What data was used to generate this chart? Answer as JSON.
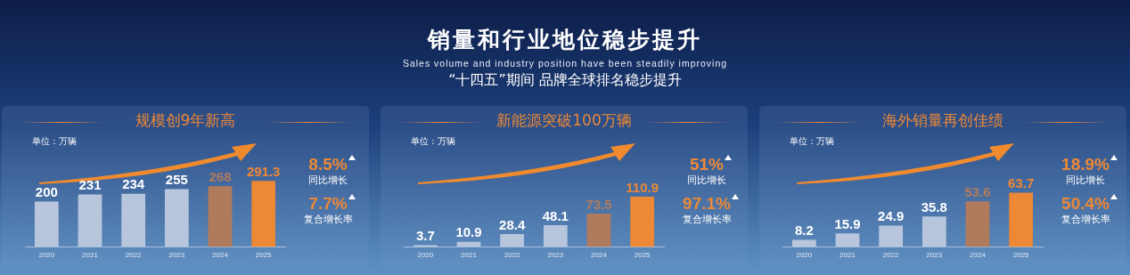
{
  "chart_data": [
    {
      "type": "other",
      "title": "销量和行业地位稳步提升",
      "subtitle": "Sales volume and industry position have been steadily improving",
      "annotations": [
        "“十四五”期间 品牌全球排名稳步提升"
      ]
    },
    {
      "type": "bar",
      "title": "规模创9年新高",
      "categories": [
        "2020",
        "2021",
        "2022",
        "2023",
        "2024",
        "2025"
      ],
      "values": [
        200,
        231,
        234,
        255,
        268,
        291.3
      ],
      "colors": [
        "#b7c6dc",
        "#b7c6dc",
        "#b7c6dc",
        "#b7c6dc",
        "#b07b5c",
        "#ec8836"
      ],
      "data_labels": true,
      "annotations": [
        "单位：万辆",
        "8.5%",
        "同比增长",
        "7.7%",
        "复合增长率"
      ]
    },
    {
      "type": "bar",
      "title": "新能源突破100万辆",
      "categories": [
        "2020",
        "2021",
        "2022",
        "2023",
        "2024",
        "2025"
      ],
      "values": [
        3.7,
        10.9,
        28.4,
        48.1,
        73.5,
        110.9
      ],
      "colors": [
        "#b7c6dc",
        "#b7c6dc",
        "#b7c6dc",
        "#b7c6dc",
        "#b07b5c",
        "#ec8836"
      ],
      "data_labels": true,
      "annotations": [
        "单位：万辆",
        "51%",
        "同比增长",
        "97.1%",
        "复合增长率"
      ]
    },
    {
      "type": "bar",
      "title": "海外销量再创佳绩",
      "categories": [
        "2020",
        "2021",
        "2022",
        "2023",
        "2024",
        "2025"
      ],
      "values": [
        8.2,
        15.9,
        24.9,
        35.8,
        53.6,
        63.7
      ],
      "colors": [
        "#b7c6dc",
        "#b7c6dc",
        "#b7c6dc",
        "#b7c6dc",
        "#b07b5c",
        "#ec8836"
      ],
      "data_labels": true,
      "annotations": [
        "单位：万辆",
        "18.9%",
        "同比增长",
        "50.4%",
        "复合增长率"
      ]
    }
  ]
}
